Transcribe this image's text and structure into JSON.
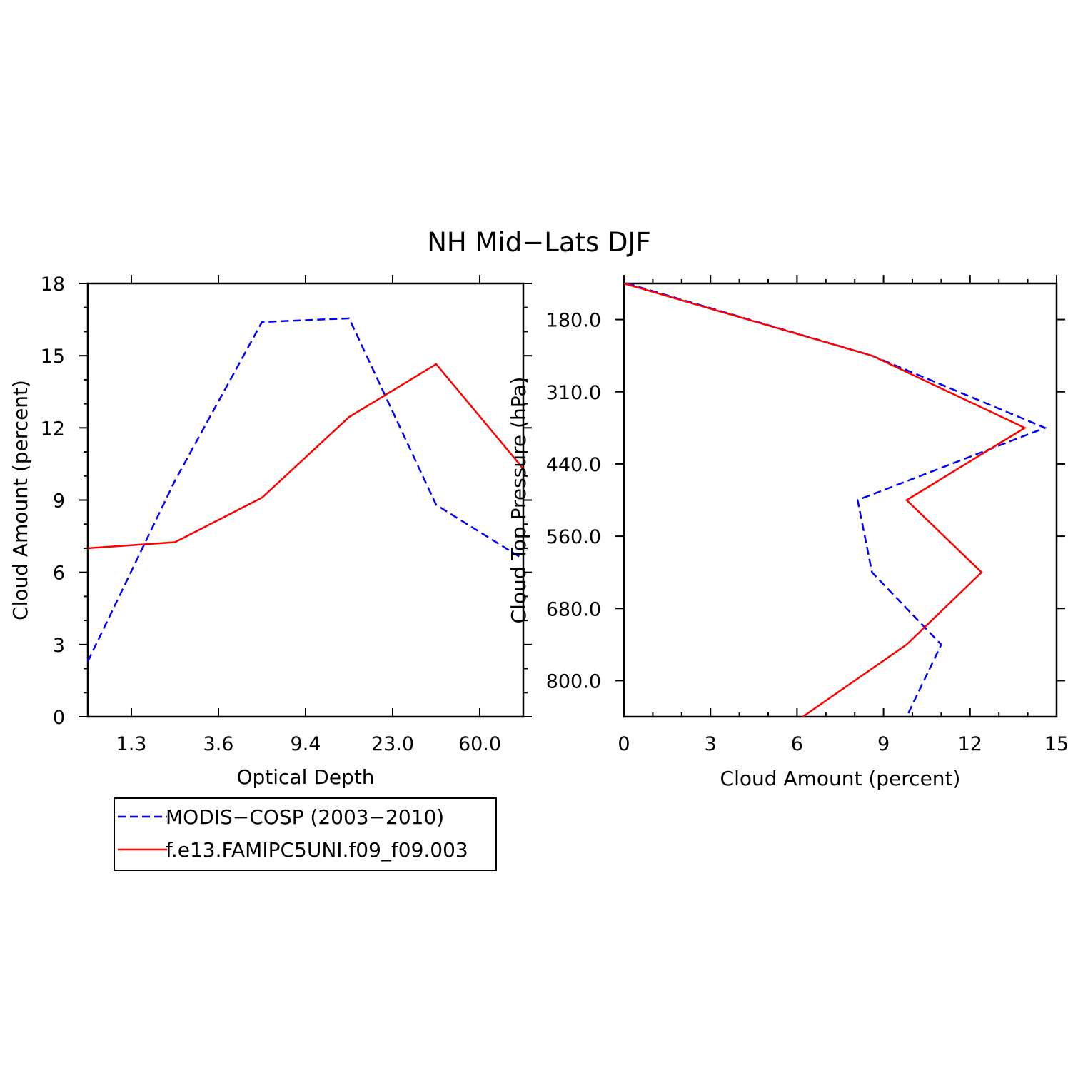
{
  "title": "NH Mid−Lats DJF",
  "legend": [
    {
      "name": "MODIS−COSP (2003−2010)",
      "color": "#0000ff",
      "dash": "dashed"
    },
    {
      "name": "f.e13.FAMIPC5UNI.f09_f09.003",
      "color": "#ff0000",
      "dash": "solid"
    }
  ],
  "chart_data": [
    {
      "type": "line",
      "xlabel": "Optical Depth",
      "ylabel": "Cloud Amount (percent)",
      "x_tick_labels": [
        "1.3",
        "3.6",
        "9.4",
        "23.0",
        "60.0"
      ],
      "x_positions": [
        0,
        1,
        2,
        3,
        4,
        5
      ],
      "xlim": [
        0,
        5
      ],
      "ylim": [
        0,
        18
      ],
      "y_ticks": [
        0,
        3,
        6,
        9,
        12,
        15,
        18
      ],
      "series": [
        {
          "name": "MODIS−COSP (2003−2010)",
          "color": "#0000ff",
          "values": [
            2.3,
            9.8,
            16.4,
            16.55,
            8.8,
            6.55
          ]
        },
        {
          "name": "f.e13.FAMIPC5UNI.f09_f09.003",
          "color": "#ff0000",
          "values": [
            7.0,
            7.25,
            9.1,
            12.45,
            14.65,
            10.3
          ]
        }
      ]
    },
    {
      "type": "line",
      "orientation": "horizontal-profile",
      "xlabel": "Cloud Amount (percent)",
      "ylabel": "Cloud Top Pressure (hPa)",
      "xlim": [
        0,
        15
      ],
      "x_ticks": [
        0,
        3,
        6,
        9,
        12,
        15
      ],
      "y_tick_labels": [
        "180.0",
        "310.0",
        "440.0",
        "560.0",
        "680.0",
        "800.0"
      ],
      "levels": [
        0,
        1,
        2,
        3,
        4,
        5,
        6
      ],
      "ylim": [
        0,
        6
      ],
      "series": [
        {
          "name": "MODIS−COSP (2003−2010)",
          "color": "#0000ff",
          "values": [
            0.1,
            8.6,
            14.6,
            8.1,
            8.6,
            11.0,
            9.8
          ]
        },
        {
          "name": "f.e13.FAMIPC5UNI.f09_f09.003",
          "color": "#ff0000",
          "values": [
            0.0,
            8.6,
            13.9,
            9.8,
            12.4,
            9.8,
            6.2
          ]
        }
      ]
    }
  ]
}
